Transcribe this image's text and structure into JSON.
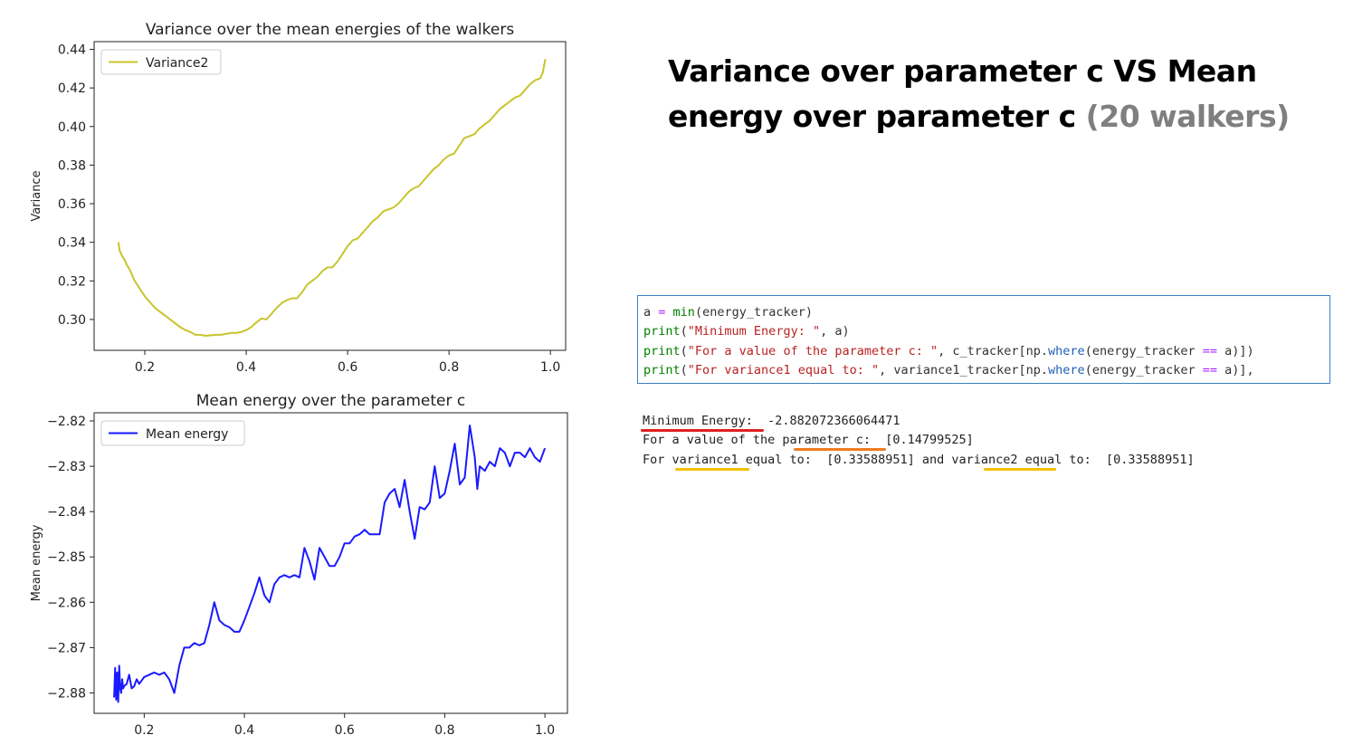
{
  "slide_title": {
    "main": "Variance over parameter c VS Mean energy over parameter c",
    "suffix": "(20 walkers)"
  },
  "colors": {
    "variance_line": "#c9c42c",
    "mean_energy_line": "#1a1aff",
    "underline_red": "#e02020",
    "underline_orange": "#f07a20",
    "underline_yellow": "#f5c000",
    "code_border": "#3b7fc4"
  },
  "code": {
    "lines": [
      [
        {
          "t": "a ",
          "c": ""
        },
        {
          "t": "=",
          "c": "op"
        },
        {
          "t": " ",
          "c": ""
        },
        {
          "t": "min",
          "c": "fn"
        },
        {
          "t": "(energy_tracker)",
          "c": ""
        }
      ],
      [
        {
          "t": "print",
          "c": "fn"
        },
        {
          "t": "(",
          "c": ""
        },
        {
          "t": "\"Minimum Energy: \"",
          "c": "str"
        },
        {
          "t": ", a)",
          "c": ""
        }
      ],
      [
        {
          "t": "print",
          "c": "fn"
        },
        {
          "t": "(",
          "c": ""
        },
        {
          "t": "\"For a value of the parameter c: \"",
          "c": "str"
        },
        {
          "t": ", c_tracker[np.",
          "c": ""
        },
        {
          "t": "where",
          "c": "attr"
        },
        {
          "t": "(energy_tracker ",
          "c": ""
        },
        {
          "t": "==",
          "c": "op"
        },
        {
          "t": " a)])",
          "c": ""
        }
      ],
      [
        {
          "t": "print",
          "c": "fn"
        },
        {
          "t": "(",
          "c": ""
        },
        {
          "t": "\"For variance1 equal to: \"",
          "c": "str"
        },
        {
          "t": ", variance1_tracker[np.",
          "c": ""
        },
        {
          "t": "where",
          "c": "attr"
        },
        {
          "t": "(energy_tracker ",
          "c": ""
        },
        {
          "t": "==",
          "c": "op"
        },
        {
          "t": " a)],",
          "c": ""
        }
      ]
    ]
  },
  "output": {
    "line1": "Minimum Energy:  -2.882072366064471",
    "line2": "For a value of the parameter c:  [0.14799525]",
    "line3": "For variance1 equal to:  [0.33588951] and variance2 equal to:  [0.33588951]"
  },
  "chart_data": [
    {
      "type": "line",
      "title": "Variance over the mean energies of the walkers",
      "xlabel": "",
      "ylabel": "Variance",
      "xlim": [
        0.1,
        1.03
      ],
      "ylim": [
        0.284,
        0.444
      ],
      "xticks": [
        0.2,
        0.4,
        0.6,
        0.8,
        1.0
      ],
      "xtick_labels": [
        "0.2",
        "0.4",
        "0.6",
        "0.8",
        "1.0"
      ],
      "yticks": [
        0.3,
        0.32,
        0.34,
        0.36,
        0.38,
        0.4,
        0.42,
        0.44
      ],
      "ytick_labels": [
        "0.30",
        "0.32",
        "0.34",
        "0.36",
        "0.38",
        "0.40",
        "0.42",
        "0.44"
      ],
      "grid": false,
      "legend_position": "top-left",
      "series": [
        {
          "name": "Variance2",
          "color": "#c9c42c",
          "x": [
            0.148,
            0.15,
            0.155,
            0.16,
            0.165,
            0.17,
            0.175,
            0.18,
            0.185,
            0.19,
            0.195,
            0.2,
            0.21,
            0.22,
            0.23,
            0.24,
            0.25,
            0.26,
            0.27,
            0.28,
            0.29,
            0.3,
            0.31,
            0.32,
            0.33,
            0.34,
            0.35,
            0.36,
            0.37,
            0.38,
            0.39,
            0.4,
            0.41,
            0.42,
            0.43,
            0.44,
            0.45,
            0.46,
            0.47,
            0.48,
            0.49,
            0.5,
            0.51,
            0.52,
            0.53,
            0.54,
            0.55,
            0.56,
            0.57,
            0.58,
            0.59,
            0.6,
            0.61,
            0.62,
            0.63,
            0.64,
            0.65,
            0.66,
            0.67,
            0.68,
            0.69,
            0.7,
            0.71,
            0.72,
            0.73,
            0.74,
            0.75,
            0.76,
            0.77,
            0.78,
            0.79,
            0.8,
            0.81,
            0.82,
            0.83,
            0.84,
            0.85,
            0.86,
            0.87,
            0.88,
            0.89,
            0.9,
            0.91,
            0.92,
            0.93,
            0.94,
            0.95,
            0.96,
            0.97,
            0.98,
            0.985,
            0.99
          ],
          "y": [
            0.34,
            0.336,
            0.333,
            0.331,
            0.328,
            0.326,
            0.323,
            0.32,
            0.318,
            0.316,
            0.314,
            0.312,
            0.309,
            0.306,
            0.304,
            0.302,
            0.3,
            0.298,
            0.296,
            0.2945,
            0.2935,
            0.292,
            0.292,
            0.2915,
            0.2918,
            0.292,
            0.292,
            0.2925,
            0.293,
            0.293,
            0.2935,
            0.2945,
            0.296,
            0.2985,
            0.3005,
            0.3,
            0.303,
            0.306,
            0.3085,
            0.31,
            0.311,
            0.311,
            0.314,
            0.318,
            0.32,
            0.322,
            0.325,
            0.327,
            0.327,
            0.33,
            0.334,
            0.338,
            0.341,
            0.342,
            0.345,
            0.348,
            0.351,
            0.353,
            0.356,
            0.357,
            0.358,
            0.36,
            0.363,
            0.366,
            0.368,
            0.369,
            0.372,
            0.375,
            0.378,
            0.38,
            0.383,
            0.385,
            0.386,
            0.39,
            0.394,
            0.395,
            0.396,
            0.399,
            0.401,
            0.403,
            0.406,
            0.409,
            0.411,
            0.413,
            0.415,
            0.416,
            0.419,
            0.422,
            0.424,
            0.425,
            0.428,
            0.435
          ]
        }
      ]
    },
    {
      "type": "line",
      "title": "Mean energy over the parameter c",
      "xlabel": "",
      "ylabel": "Mean energy",
      "xlim": [
        0.1,
        1.045
      ],
      "ylim": [
        -2.8845,
        -2.8182
      ],
      "xticks": [
        0.2,
        0.4,
        0.6,
        0.8,
        1.0
      ],
      "xtick_labels": [
        "0.2",
        "0.4",
        "0.6",
        "0.8",
        "1.0"
      ],
      "yticks": [
        -2.82,
        -2.83,
        -2.84,
        -2.85,
        -2.86,
        -2.87,
        -2.88
      ],
      "ytick_labels": [
        "−2.82",
        "−2.83",
        "−2.84",
        "−2.85",
        "−2.86",
        "−2.87",
        "−2.88"
      ],
      "grid": false,
      "legend_position": "top-left",
      "series": [
        {
          "name": "Mean energy",
          "color": "#1a1aff",
          "x": [
            0.14,
            0.142,
            0.144,
            0.146,
            0.148,
            0.15,
            0.152,
            0.154,
            0.156,
            0.158,
            0.16,
            0.165,
            0.17,
            0.175,
            0.18,
            0.185,
            0.19,
            0.2,
            0.21,
            0.22,
            0.23,
            0.24,
            0.25,
            0.26,
            0.27,
            0.28,
            0.29,
            0.3,
            0.31,
            0.32,
            0.33,
            0.34,
            0.35,
            0.36,
            0.37,
            0.38,
            0.39,
            0.4,
            0.41,
            0.42,
            0.43,
            0.44,
            0.45,
            0.46,
            0.47,
            0.48,
            0.49,
            0.5,
            0.51,
            0.52,
            0.53,
            0.54,
            0.55,
            0.56,
            0.57,
            0.58,
            0.59,
            0.6,
            0.61,
            0.62,
            0.63,
            0.64,
            0.65,
            0.66,
            0.67,
            0.68,
            0.69,
            0.7,
            0.71,
            0.72,
            0.73,
            0.74,
            0.75,
            0.76,
            0.77,
            0.78,
            0.79,
            0.8,
            0.81,
            0.82,
            0.83,
            0.84,
            0.85,
            0.86,
            0.865,
            0.87,
            0.88,
            0.89,
            0.9,
            0.91,
            0.92,
            0.93,
            0.94,
            0.95,
            0.96,
            0.97,
            0.98,
            0.99,
            1.0
          ],
          "y": [
            -2.881,
            -2.8745,
            -2.8815,
            -2.8755,
            -2.882,
            -2.874,
            -2.879,
            -2.88,
            -2.877,
            -2.879,
            -2.8785,
            -2.878,
            -2.876,
            -2.879,
            -2.8785,
            -2.877,
            -2.878,
            -2.8765,
            -2.876,
            -2.8755,
            -2.876,
            -2.8755,
            -2.877,
            -2.88,
            -2.874,
            -2.87,
            -2.87,
            -2.869,
            -2.8695,
            -2.869,
            -2.865,
            -2.86,
            -2.864,
            -2.865,
            -2.8655,
            -2.8665,
            -2.8665,
            -2.864,
            -2.861,
            -2.858,
            -2.8545,
            -2.8585,
            -2.86,
            -2.856,
            -2.8545,
            -2.854,
            -2.8545,
            -2.854,
            -2.8545,
            -2.848,
            -2.851,
            -2.855,
            -2.848,
            -2.85,
            -2.852,
            -2.852,
            -2.85,
            -2.847,
            -2.847,
            -2.8455,
            -2.845,
            -2.844,
            -2.845,
            -2.845,
            -2.845,
            -2.838,
            -2.836,
            -2.835,
            -2.839,
            -2.833,
            -2.84,
            -2.846,
            -2.839,
            -2.8395,
            -2.838,
            -2.83,
            -2.837,
            -2.836,
            -2.831,
            -2.825,
            -2.834,
            -2.8325,
            -2.821,
            -2.828,
            -2.835,
            -2.83,
            -2.831,
            -2.829,
            -2.83,
            -2.826,
            -2.827,
            -2.83,
            -2.827,
            -2.827,
            -2.828,
            -2.826,
            -2.828,
            -2.829,
            -2.826
          ]
        }
      ]
    }
  ]
}
